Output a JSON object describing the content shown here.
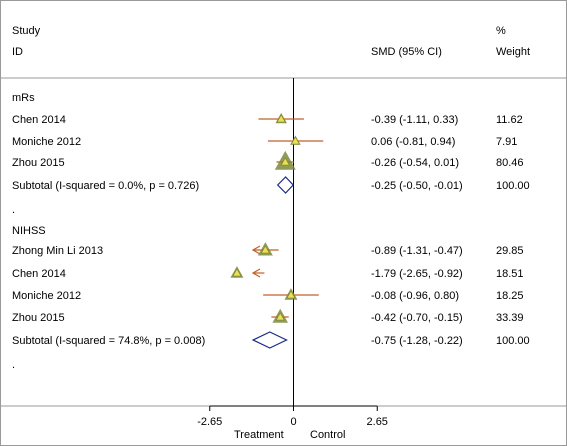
{
  "chart_data": {
    "type": "forest",
    "columns": {
      "study_header_1": "Study",
      "study_header_2": "ID",
      "estimate_header": "SMD (95% CI)",
      "weight_header_1": "%",
      "weight_header_2": "Weight"
    },
    "x_axis": {
      "ticks": [
        -2.65,
        0,
        2.65
      ],
      "tick_labels": [
        "-2.65",
        "0",
        "2.65"
      ],
      "left_label": "Treatment",
      "right_label": "Control",
      "range": [
        -2.65,
        2.65
      ]
    },
    "groups": [
      {
        "name": "mRs",
        "studies": [
          {
            "label": "Chen 2014",
            "smd": -0.39,
            "lower": -1.11,
            "upper": 0.33,
            "ci_text": "-0.39 (-1.11, 0.33)",
            "weight": "11.62"
          },
          {
            "label": "Moniche 2012",
            "smd": 0.06,
            "lower": -0.81,
            "upper": 0.94,
            "ci_text": "0.06 (-0.81, 0.94)",
            "weight": "7.91"
          },
          {
            "label": "Zhou 2015",
            "smd": -0.26,
            "lower": -0.54,
            "upper": 0.01,
            "ci_text": "-0.26 (-0.54, 0.01)",
            "weight": "80.46"
          }
        ],
        "subtotal": {
          "label": "Subtotal  (I-squared = 0.0%, p = 0.726)",
          "smd": -0.25,
          "lower": -0.5,
          "upper": -0.01,
          "ci_text": "-0.25 (-0.50, -0.01)",
          "weight": "100.00"
        },
        "separator": "."
      },
      {
        "name": "NIHSS",
        "studies": [
          {
            "label": "Zhong Min Li 2013",
            "smd": -0.89,
            "lower": -1.31,
            "upper": -0.47,
            "ci_text": "-0.89 (-1.31, -0.47)",
            "weight": "29.85"
          },
          {
            "label": "Chen 2014",
            "smd": -1.79,
            "lower": -2.65,
            "upper": -0.92,
            "ci_text": "-1.79 (-2.65, -0.92)",
            "weight": "18.51"
          },
          {
            "label": "Moniche 2012",
            "smd": -0.08,
            "lower": -0.96,
            "upper": 0.8,
            "ci_text": "-0.08 (-0.96, 0.80)",
            "weight": "18.25"
          },
          {
            "label": "Zhou 2015",
            "smd": -0.42,
            "lower": -0.7,
            "upper": -0.15,
            "ci_text": "-0.42 (-0.70, -0.15)",
            "weight": "33.39"
          }
        ],
        "subtotal": {
          "label": "Subtotal  (I-squared = 74.8%, p = 0.008)",
          "smd": -0.75,
          "lower": -1.28,
          "upper": -0.22,
          "ci_text": "-0.75 (-1.28, -0.22)",
          "weight": "100.00"
        },
        "separator": "."
      }
    ],
    "colors": {
      "ci_line": "#c0622a",
      "marker_fill": "#e8e05a",
      "weight_box": "#7a8a3c",
      "diamond": "#1a2a8a",
      "axis": "#000000",
      "rule": "#9a9a9a"
    }
  }
}
